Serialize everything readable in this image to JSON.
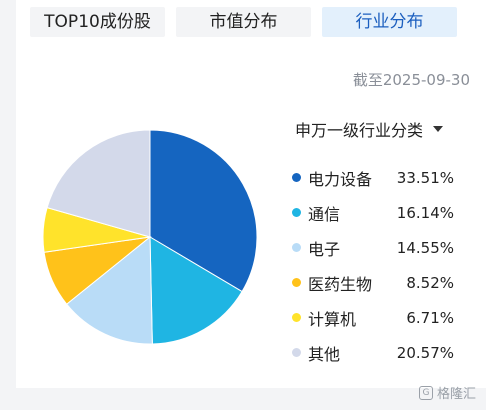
{
  "tabs": [
    {
      "label": "TOP10成份股",
      "active": false
    },
    {
      "label": "市值分布",
      "active": false
    },
    {
      "label": "行业分布",
      "active": true
    }
  ],
  "as_of": "截至2025-09-30",
  "classifier": {
    "label": "申万一级行业分类",
    "icon": "caret-down-icon"
  },
  "chart_data": {
    "type": "pie",
    "slices": [
      {
        "name": "电力设备",
        "value": 33.51,
        "label": "33.51%",
        "color": "#1565c0"
      },
      {
        "name": "通信",
        "value": 16.14,
        "label": "16.14%",
        "color": "#1fb5e3"
      },
      {
        "name": "电子",
        "value": 14.55,
        "label": "14.55%",
        "color": "#b9dcf7"
      },
      {
        "name": "医药生物",
        "value": 8.52,
        "label": "8.52%",
        "color": "#ffc21a"
      },
      {
        "name": "计算机",
        "value": 6.71,
        "label": "6.71%",
        "color": "#ffe32b"
      },
      {
        "name": "其他",
        "value": 20.57,
        "label": "20.57%",
        "color": "#d3d9ea"
      }
    ]
  },
  "watermark": "格隆汇"
}
